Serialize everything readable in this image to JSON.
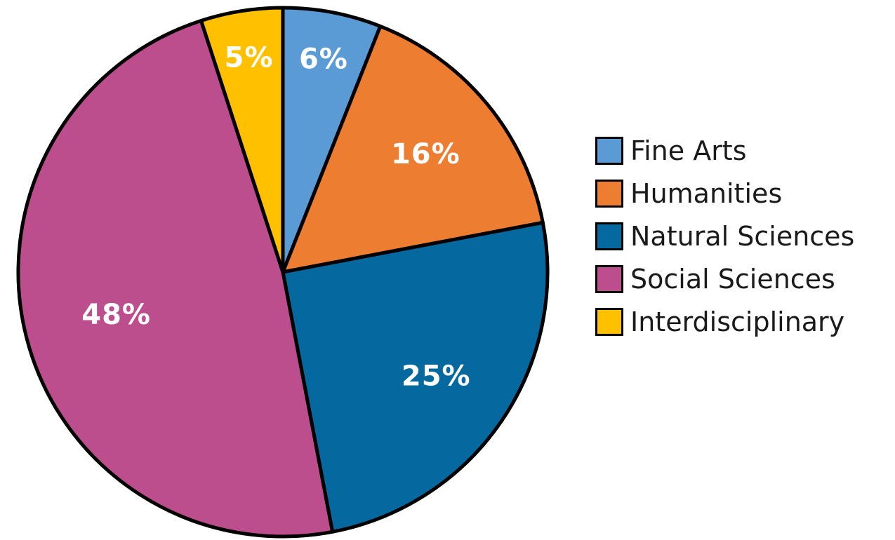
{
  "chart_data": {
    "type": "pie",
    "title": "",
    "slices": [
      {
        "label": "Fine Arts",
        "value": 6,
        "display": "6%",
        "color": "#5b9bd5"
      },
      {
        "label": "Humanities",
        "value": 16,
        "display": "16%",
        "color": "#ed7d31"
      },
      {
        "label": "Natural Sciences",
        "value": 25,
        "display": "25%",
        "color": "#05699f"
      },
      {
        "label": "Social Sciences",
        "value": 48,
        "display": "48%",
        "color": "#bd4e8e"
      },
      {
        "label": "Interdisciplinary",
        "value": 5,
        "display": "5%",
        "color": "#ffc000"
      }
    ],
    "start_angle_deg": 0,
    "direction": "clockwise",
    "legend_position": "right",
    "label_color": "#ffffff",
    "stroke_color": "#000000"
  }
}
